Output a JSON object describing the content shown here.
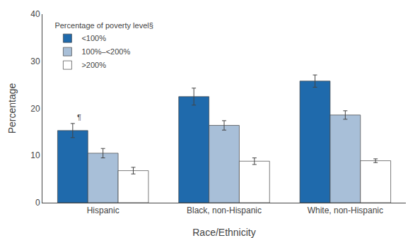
{
  "chart_data": {
    "type": "bar",
    "categories": [
      "Hispanic",
      "Black, non-Hispanic",
      "White, non-Hispanic"
    ],
    "series": [
      {
        "name": "<100%",
        "color": "#1f6aac",
        "values": [
          15.3,
          22.5,
          25.8
        ],
        "errors": [
          1.5,
          1.8,
          1.3
        ]
      },
      {
        "name": "100%–<200%",
        "color": "#a8bfd8",
        "values": [
          10.5,
          16.4,
          18.6
        ],
        "errors": [
          1.0,
          1.0,
          0.9
        ]
      },
      {
        "name": ">200%",
        "color": "#ffffff",
        "values": [
          6.8,
          8.8,
          8.9
        ],
        "errors": [
          0.7,
          0.7,
          0.4
        ]
      }
    ],
    "legend_title": "Percentage of poverty level§",
    "legend": "upper left",
    "xlabel": "Race/Ethnicity",
    "ylabel": "Percentage",
    "ylim": [
      0,
      40
    ],
    "yticks": [
      0,
      10,
      20,
      30,
      40
    ],
    "grid": false,
    "annotations": [
      {
        "text": "¶",
        "category": "Hispanic",
        "series": "<100%"
      }
    ]
  }
}
